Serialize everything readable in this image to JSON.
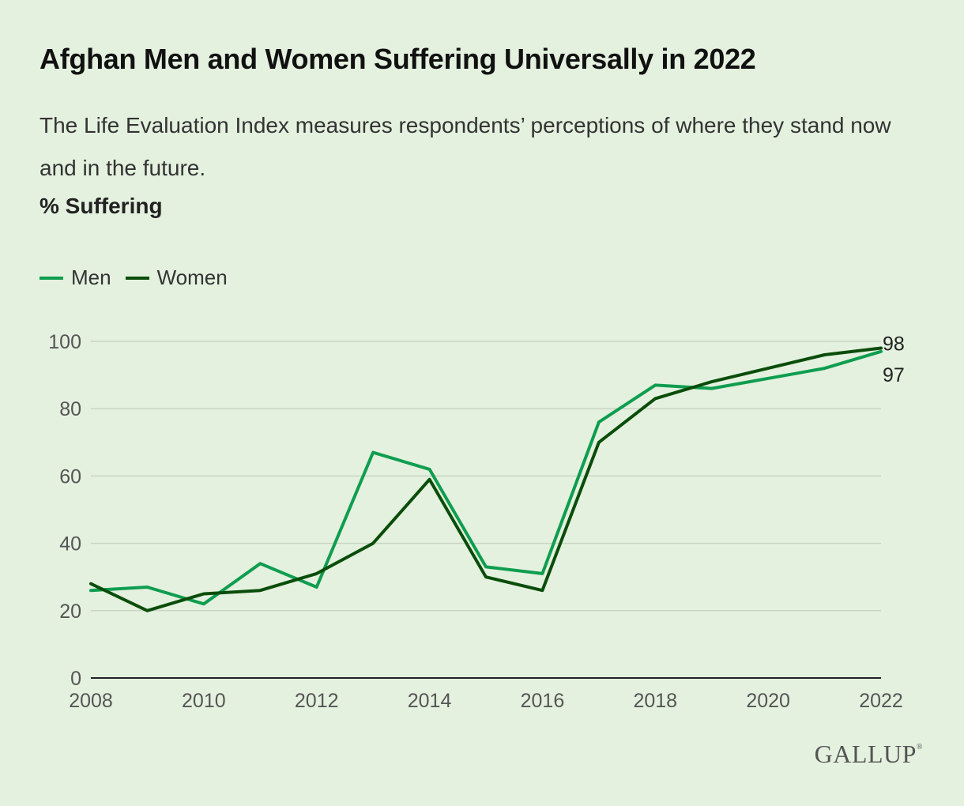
{
  "title": "Afghan Men and Women Suffering Universally in 2022",
  "subtitle": "The Life Evaluation Index measures respondents’ perceptions of where they stand now and in the future.",
  "unit_label": "% Suffering",
  "logo": "GALLUP",
  "logo_mark": "®",
  "colors": {
    "men": "#0f9d4f",
    "women": "#0a4d0a",
    "grid": "#c9d6c4",
    "axis": "#222222",
    "tick": "#555555"
  },
  "chart_data": {
    "type": "line",
    "x": [
      2008,
      2009,
      2010,
      2011,
      2012,
      2013,
      2014,
      2015,
      2016,
      2017,
      2018,
      2019,
      2021,
      2022
    ],
    "series": [
      {
        "name": "Men",
        "values": [
          26,
          27,
          22,
          34,
          27,
          67,
          62,
          33,
          31,
          76,
          87,
          86,
          92,
          97
        ]
      },
      {
        "name": "Women",
        "values": [
          28,
          20,
          25,
          26,
          31,
          40,
          59,
          30,
          26,
          70,
          83,
          88,
          96,
          98
        ]
      }
    ],
    "xlim": [
      2008,
      2022
    ],
    "ylim": [
      0,
      100
    ],
    "x_ticks": [
      "2008",
      "2010",
      "2012",
      "2014",
      "2016",
      "2018",
      "2020",
      "2022"
    ],
    "y_ticks": [
      "0",
      "20",
      "40",
      "60",
      "80",
      "100"
    ],
    "end_labels": [
      "98",
      "97"
    ],
    "legend_position": "top-left",
    "grid": true
  }
}
